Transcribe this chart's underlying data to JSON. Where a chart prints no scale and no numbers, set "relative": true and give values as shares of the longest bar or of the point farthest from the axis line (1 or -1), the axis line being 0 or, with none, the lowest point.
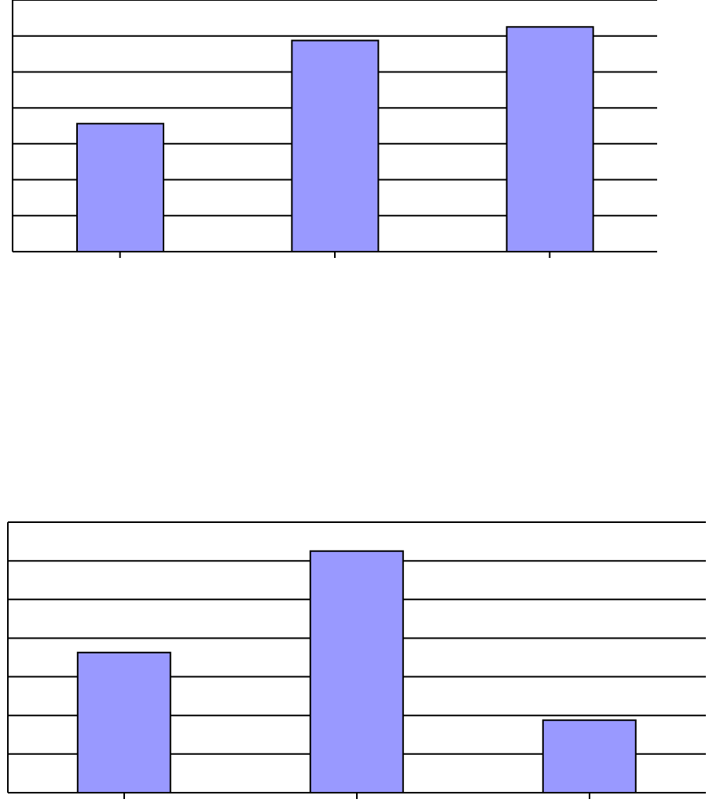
{
  "chart_data": [
    {
      "type": "bar",
      "categories": [
        null,
        null,
        null
      ],
      "values": [
        0.57,
        0.94,
        1
      ],
      "color": "#9999ff",
      "relative": true,
      "grid": "y"
    },
    {
      "type": "bar",
      "categories": [
        null,
        null,
        null
      ],
      "values": [
        0.58,
        1,
        0.3
      ],
      "color": "#9999ff",
      "relative": true,
      "grid": "y"
    }
  ]
}
